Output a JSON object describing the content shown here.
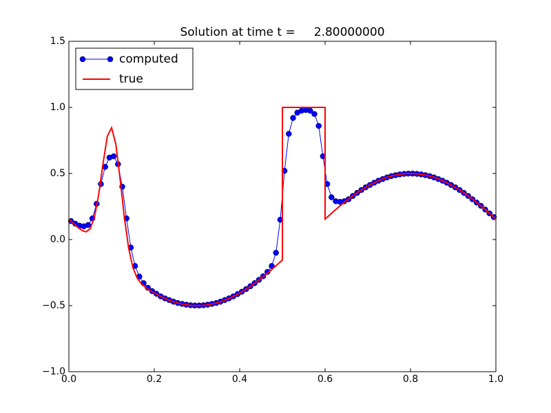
{
  "chart_data": {
    "type": "line",
    "title": "Solution at time t =     2.80000000",
    "xlim": [
      0,
      1
    ],
    "ylim": [
      -1,
      1.5
    ],
    "xticks": [
      {
        "value": 0,
        "label": "0.0"
      },
      {
        "value": 0.2,
        "label": "0.2"
      },
      {
        "value": 0.4,
        "label": "0.4"
      },
      {
        "value": 0.6,
        "label": "0.6"
      },
      {
        "value": 0.8,
        "label": "0.8"
      },
      {
        "value": 1,
        "label": "1.0"
      }
    ],
    "yticks": [
      {
        "value": -1,
        "label": "−1.0"
      },
      {
        "value": -0.5,
        "label": "−0.5"
      },
      {
        "value": 0,
        "label": "0.0"
      },
      {
        "value": 0.5,
        "label": "0.5"
      },
      {
        "value": 1,
        "label": "1.0"
      },
      {
        "value": 1.5,
        "label": "1.5"
      }
    ],
    "legend": "upper left",
    "series": [
      {
        "name": "computed",
        "color": "#0000ff",
        "marker": "o",
        "x": [
          0.005,
          0.015,
          0.025,
          0.035,
          0.045,
          0.055,
          0.065,
          0.075,
          0.085,
          0.095,
          0.105,
          0.115,
          0.125,
          0.135,
          0.145,
          0.155,
          0.165,
          0.175,
          0.185,
          0.195,
          0.205,
          0.215,
          0.225,
          0.235,
          0.245,
          0.255,
          0.265,
          0.275,
          0.285,
          0.295,
          0.305,
          0.315,
          0.325,
          0.335,
          0.345,
          0.355,
          0.365,
          0.375,
          0.385,
          0.395,
          0.405,
          0.415,
          0.425,
          0.435,
          0.445,
          0.455,
          0.465,
          0.475,
          0.485,
          0.495,
          0.505,
          0.515,
          0.525,
          0.535,
          0.545,
          0.555,
          0.565,
          0.575,
          0.585,
          0.595,
          0.605,
          0.615,
          0.625,
          0.635,
          0.645,
          0.655,
          0.665,
          0.675,
          0.685,
          0.695,
          0.705,
          0.715,
          0.725,
          0.735,
          0.745,
          0.755,
          0.765,
          0.775,
          0.785,
          0.795,
          0.805,
          0.815,
          0.825,
          0.835,
          0.845,
          0.855,
          0.865,
          0.875,
          0.885,
          0.895,
          0.905,
          0.915,
          0.925,
          0.935,
          0.945,
          0.955,
          0.965,
          0.975,
          0.985,
          0.995
        ],
        "values": [
          0.14,
          0.12,
          0.105,
          0.1,
          0.11,
          0.16,
          0.27,
          0.42,
          0.55,
          0.62,
          0.63,
          0.57,
          0.4,
          0.16,
          -0.06,
          -0.2,
          -0.28,
          -0.33,
          -0.365,
          -0.39,
          -0.41,
          -0.43,
          -0.445,
          -0.458,
          -0.47,
          -0.48,
          -0.487,
          -0.493,
          -0.497,
          -0.499,
          -0.499,
          -0.497,
          -0.493,
          -0.487,
          -0.48,
          -0.47,
          -0.458,
          -0.445,
          -0.43,
          -0.413,
          -0.395,
          -0.375,
          -0.353,
          -0.33,
          -0.305,
          -0.278,
          -0.245,
          -0.2,
          -0.1,
          0.15,
          0.52,
          0.8,
          0.92,
          0.96,
          0.975,
          0.98,
          0.975,
          0.95,
          0.86,
          0.63,
          0.42,
          0.32,
          0.29,
          0.285,
          0.29,
          0.305,
          0.33,
          0.353,
          0.375,
          0.395,
          0.413,
          0.43,
          0.445,
          0.458,
          0.47,
          0.48,
          0.487,
          0.493,
          0.497,
          0.499,
          0.499,
          0.497,
          0.493,
          0.487,
          0.48,
          0.47,
          0.458,
          0.445,
          0.43,
          0.413,
          0.395,
          0.375,
          0.353,
          0.33,
          0.305,
          0.28,
          0.255,
          0.227,
          0.198,
          0.17
        ]
      },
      {
        "name": "true",
        "color": "#ff0000",
        "x": [
          0,
          0.01,
          0.02,
          0.03,
          0.04,
          0.05,
          0.06,
          0.07,
          0.08,
          0.09,
          0.1,
          0.11,
          0.12,
          0.13,
          0.14,
          0.15,
          0.16,
          0.17,
          0.18,
          0.19,
          0.2,
          0.21,
          0.22,
          0.23,
          0.24,
          0.25,
          0.26,
          0.27,
          0.28,
          0.29,
          0.3,
          0.31,
          0.32,
          0.33,
          0.34,
          0.35,
          0.36,
          0.37,
          0.38,
          0.39,
          0.4,
          0.41,
          0.42,
          0.43,
          0.44,
          0.45,
          0.46,
          0.47,
          0.48,
          0.49,
          0.5,
          0.5,
          0.6,
          0.6,
          0.61,
          0.62,
          0.63,
          0.64,
          0.65,
          0.66,
          0.67,
          0.68,
          0.69,
          0.7,
          0.71,
          0.72,
          0.73,
          0.74,
          0.75,
          0.76,
          0.77,
          0.78,
          0.79,
          0.8,
          0.81,
          0.82,
          0.83,
          0.84,
          0.85,
          0.86,
          0.87,
          0.88,
          0.89,
          0.9,
          0.91,
          0.92,
          0.93,
          0.94,
          0.95,
          0.96,
          0.97,
          0.98,
          0.99,
          1
        ],
        "values": [
          0.155,
          0.125,
          0.095,
          0.07,
          0.058,
          0.082,
          0.171,
          0.344,
          0.576,
          0.781,
          0.846,
          0.721,
          0.457,
          0.166,
          -0.066,
          -0.212,
          -0.292,
          -0.335,
          -0.363,
          -0.385,
          -0.405,
          -0.422,
          -0.438,
          -0.452,
          -0.465,
          -0.476,
          -0.484,
          -0.491,
          -0.496,
          -0.499,
          -0.5,
          -0.499,
          -0.496,
          -0.491,
          -0.484,
          -0.476,
          -0.465,
          -0.452,
          -0.438,
          -0.422,
          -0.405,
          -0.385,
          -0.365,
          -0.342,
          -0.319,
          -0.294,
          -0.268,
          -0.241,
          -0.213,
          -0.184,
          -0.155,
          1,
          1,
          0.155,
          0.184,
          0.213,
          0.241,
          0.268,
          0.294,
          0.319,
          0.342,
          0.365,
          0.385,
          0.405,
          0.422,
          0.438,
          0.452,
          0.465,
          0.476,
          0.484,
          0.491,
          0.496,
          0.499,
          0.5,
          0.499,
          0.496,
          0.491,
          0.484,
          0.476,
          0.465,
          0.452,
          0.438,
          0.422,
          0.405,
          0.385,
          0.365,
          0.342,
          0.319,
          0.294,
          0.268,
          0.241,
          0.213,
          0.184,
          0.155
        ]
      }
    ]
  }
}
